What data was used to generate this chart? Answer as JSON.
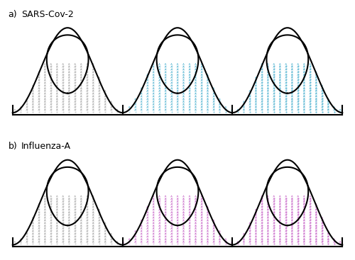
{
  "title_a": "SARS-Cov-2",
  "title_b": "Influenza-A",
  "label_a": "a)",
  "label_b": "b)",
  "color_a": "#87CEEB",
  "color_b": "#DA70D6",
  "arrow_color_a": "#6BB8D4",
  "arrow_color_b": "#CC80CC",
  "bg_color": "#ffffff",
  "n_waves": 3,
  "wave_amplitude": 0.38,
  "wave_period": 1.0,
  "inner_amplitude": 0.18,
  "x_min": 0.0,
  "x_max": 3.0,
  "y_min": 0.0,
  "y_max": 1.0
}
